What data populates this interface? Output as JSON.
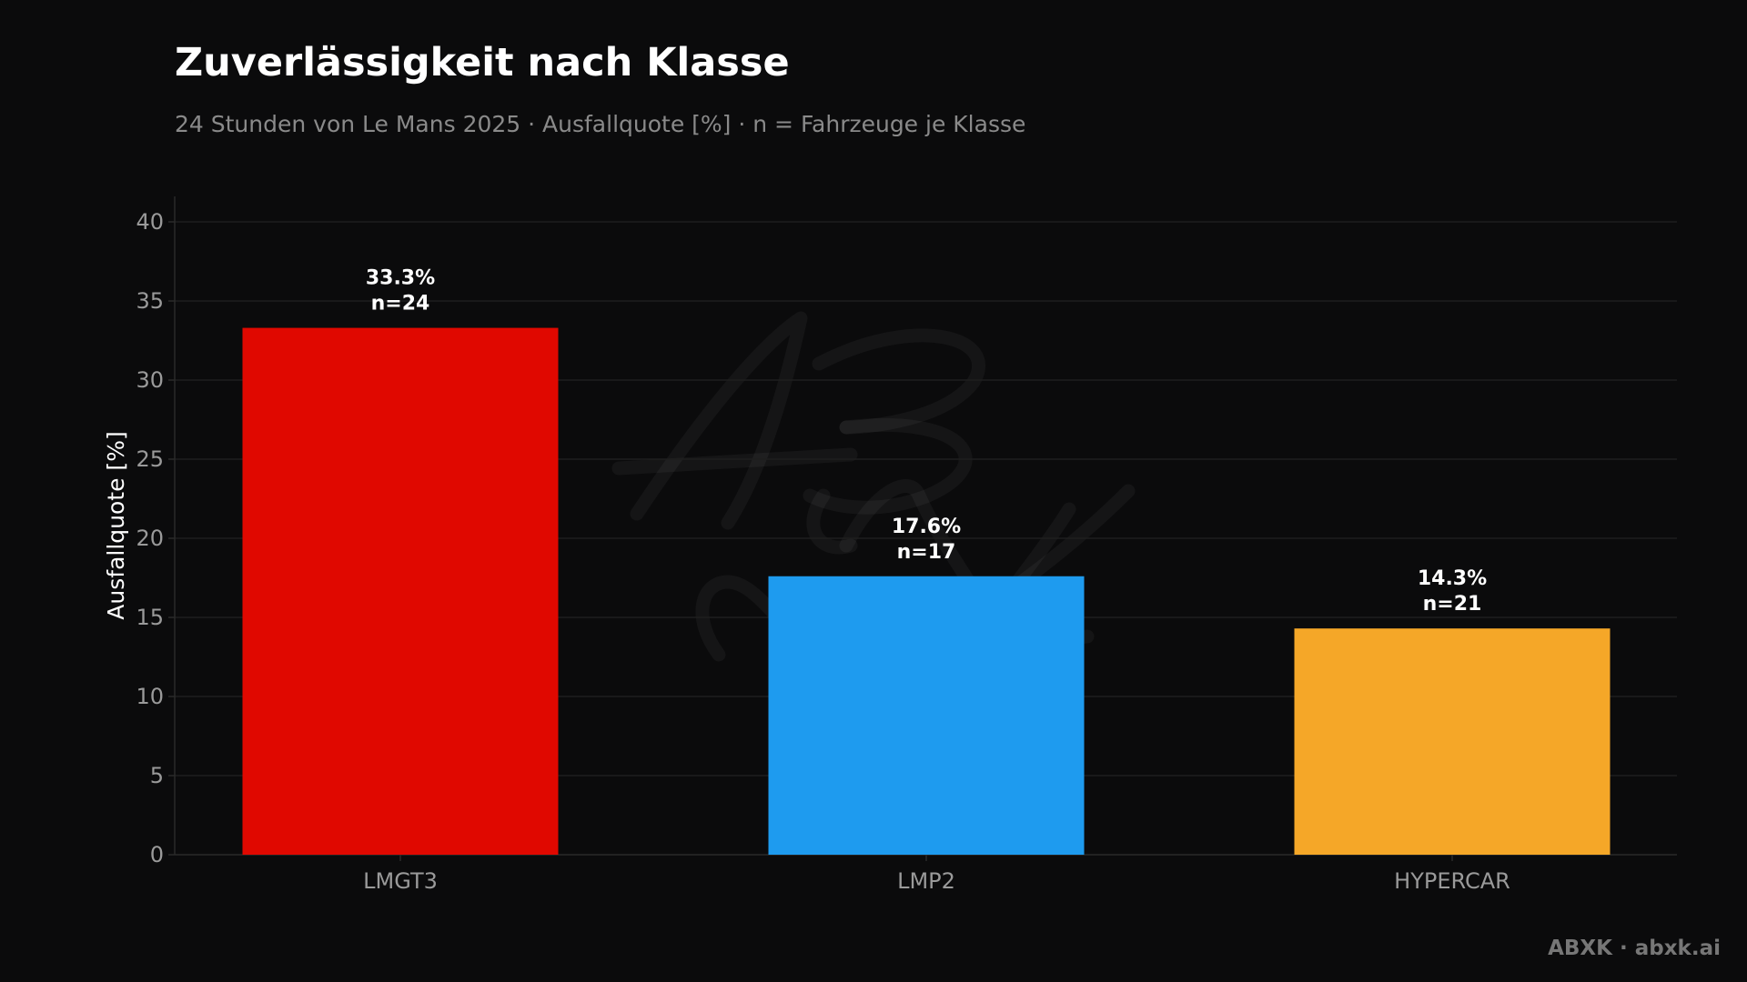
{
  "header": {
    "title": "Zuverlässigkeit nach Klasse",
    "subtitle": "24 Stunden von Le Mans 2025 · Ausfallquote [%] · n = Fahrzeuge je Klasse"
  },
  "footer": {
    "credit": "ABXK · abxk.ai"
  },
  "chart_data": {
    "type": "bar",
    "title": "Zuverlässigkeit nach Klasse",
    "subtitle": "24 Stunden von Le Mans 2025 · Ausfallquote [%] · n = Fahrzeuge je Klasse",
    "xlabel": "",
    "ylabel": "Ausfallquote [%]",
    "ylim": [
      0,
      40
    ],
    "yticks": [
      0,
      5,
      10,
      15,
      20,
      25,
      30,
      35,
      40
    ],
    "grid": true,
    "categories": [
      "LMGT3",
      "LMP2",
      "HYPERCAR"
    ],
    "values": [
      33.3,
      17.6,
      14.3
    ],
    "counts": [
      24,
      17,
      21
    ],
    "value_labels": [
      "33.3%",
      "17.6%",
      "14.3%"
    ],
    "count_labels": [
      "n=24",
      "n=17",
      "n=21"
    ],
    "colors": [
      "#e00800",
      "#1e9bef",
      "#f5a728"
    ]
  },
  "colors": {
    "background": "#0b0b0c",
    "grid": "#1e1e1e",
    "axis": "#2a2a2a"
  }
}
